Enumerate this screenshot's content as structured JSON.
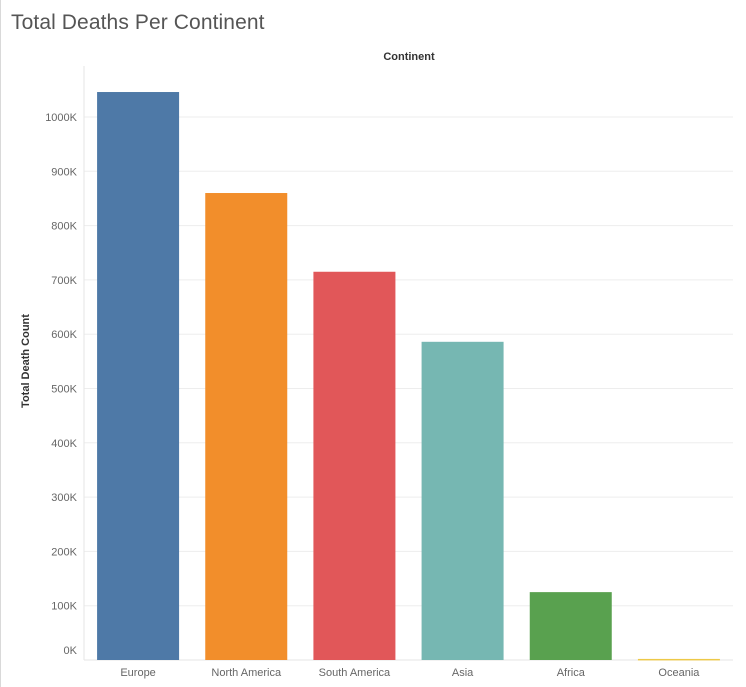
{
  "title": "Total Deaths Per Continent",
  "chart_data": {
    "type": "bar",
    "column_header": "Continent",
    "ylabel": "Total Death Count",
    "xlabel": "",
    "categories": [
      "Europe",
      "North America",
      "South America",
      "Asia",
      "Africa",
      "Oceania"
    ],
    "values": [
      1046000,
      860000,
      715000,
      586000,
      125000,
      2000
    ],
    "colors": [
      "#4e79a7",
      "#f28e2b",
      "#e15759",
      "#76b7b2",
      "#59a14f",
      "#edc948"
    ],
    "ylim": [
      0,
      1100000
    ],
    "y_ticks": [
      0,
      100000,
      200000,
      300000,
      400000,
      500000,
      600000,
      700000,
      800000,
      900000,
      1000000
    ],
    "y_tick_labels": [
      "0K",
      "100K",
      "200K",
      "300K",
      "400K",
      "500K",
      "600K",
      "700K",
      "800K",
      "900K",
      "1000K"
    ],
    "grid": true,
    "legend": "none"
  }
}
